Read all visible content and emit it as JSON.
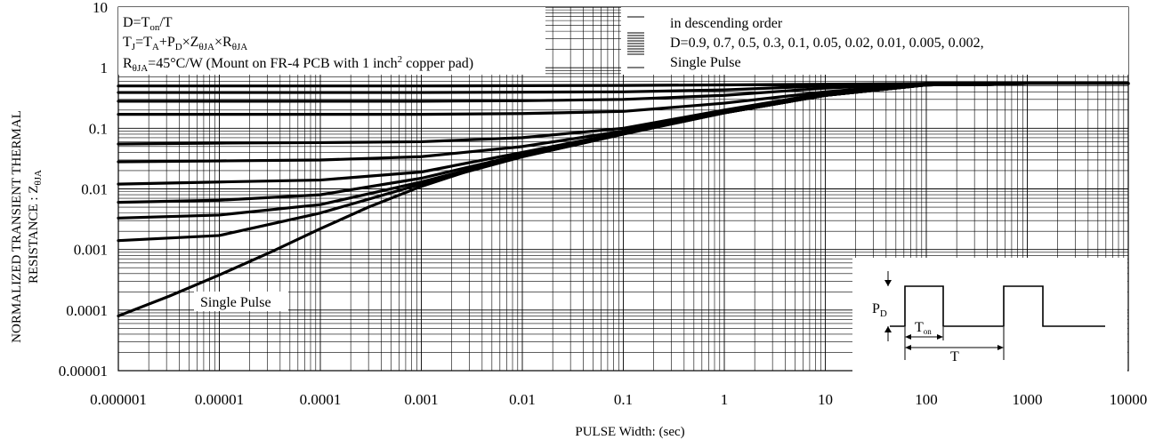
{
  "chart_data": {
    "type": "line",
    "x_scale": "log",
    "y_scale": "log",
    "xlim": [
      1e-06,
      10000
    ],
    "ylim": [
      1e-05,
      10
    ],
    "grid": true,
    "xlabel": "PULSE Width: (sec)",
    "ylabel_line1": "NORMALIZED TRANSIENT THERMAL",
    "ylabel_line2_text": "RESISTANCE : Z",
    "ylabel_line2_sub": "θJA",
    "x_tick_labels": [
      "0.000001",
      "0.00001",
      "0.0001",
      "0.001",
      "0.01",
      "0.1",
      "1",
      "10",
      "100",
      "1000",
      "10000"
    ],
    "x_ticks": [
      1e-06,
      1e-05,
      0.0001,
      0.001,
      0.01,
      0.1,
      1,
      10,
      100,
      1000,
      10000
    ],
    "y_tick_labels": [
      "10",
      "1",
      "0.1",
      "0.01",
      "0.001",
      "0.0001",
      "0.00001"
    ],
    "y_ticks": [
      10,
      1,
      0.1,
      0.01,
      0.001,
      0.0001,
      1e-05
    ],
    "annotation_lines": [
      {
        "parts": [
          {
            "t": "D=T"
          },
          {
            "t": "on",
            "sub": true
          },
          {
            "t": "/T"
          }
        ]
      },
      {
        "parts": [
          {
            "t": "T"
          },
          {
            "t": "J",
            "sub": true
          },
          {
            "t": "=T"
          },
          {
            "t": "A",
            "sub": true
          },
          {
            "t": "+P"
          },
          {
            "t": "D",
            "sub": true
          },
          {
            "t": "×Z"
          },
          {
            "t": "θJA",
            "sub": true
          },
          {
            "t": "×R"
          },
          {
            "t": "θJA",
            "sub": true
          }
        ]
      },
      {
        "parts": [
          {
            "t": "R"
          },
          {
            "t": "θJA",
            "sub": true
          },
          {
            "t": "=45°C/W (Mount on FR-4 PCB with 1 inch"
          },
          {
            "t": "2",
            "sup": true
          },
          {
            "t": " copper pad)"
          }
        ]
      }
    ],
    "legend": {
      "line1": "in descending order",
      "line2": "D=0.9, 0.7,  0.5, 0.3, 0.1, 0.05, 0.02, 0.01, 0.005, 0.002,",
      "line3": "Single Pulse"
    },
    "single_pulse_label": "Single Pulse",
    "inset": {
      "pd_label": "P",
      "pd_sub": "D",
      "ton_label": "T",
      "ton_sub": "on",
      "t_label": "T"
    },
    "steady_state_value": 0.55,
    "series": [
      {
        "duty": 0.9,
        "x": [
          1e-06,
          1e-05,
          0.0001,
          0.001,
          0.01,
          0.1,
          1,
          10,
          100,
          1000,
          10000
        ],
        "y": [
          0.5,
          0.5,
          0.5,
          0.5,
          0.505,
          0.51,
          0.52,
          0.535,
          0.55,
          0.55,
          0.55
        ]
      },
      {
        "duty": 0.7,
        "x": [
          1e-06,
          1e-05,
          0.0001,
          0.001,
          0.01,
          0.1,
          1,
          10,
          100,
          1000,
          10000
        ],
        "y": [
          0.39,
          0.39,
          0.39,
          0.39,
          0.395,
          0.4,
          0.43,
          0.5,
          0.55,
          0.55,
          0.55
        ]
      },
      {
        "duty": 0.5,
        "x": [
          1e-06,
          1e-05,
          0.0001,
          0.001,
          0.01,
          0.1,
          1,
          10,
          100,
          1000,
          10000
        ],
        "y": [
          0.28,
          0.28,
          0.28,
          0.28,
          0.285,
          0.3,
          0.35,
          0.46,
          0.55,
          0.55,
          0.55
        ]
      },
      {
        "duty": 0.3,
        "x": [
          1e-06,
          1e-05,
          0.0001,
          0.001,
          0.01,
          0.1,
          1,
          10,
          100,
          1000,
          10000
        ],
        "y": [
          0.17,
          0.17,
          0.17,
          0.17,
          0.175,
          0.19,
          0.26,
          0.4,
          0.55,
          0.55,
          0.55
        ]
      },
      {
        "duty": 0.1,
        "x": [
          1e-06,
          1e-05,
          0.0001,
          0.001,
          0.01,
          0.1,
          1,
          10,
          100,
          1000,
          10000
        ],
        "y": [
          0.055,
          0.057,
          0.058,
          0.06,
          0.07,
          0.1,
          0.2,
          0.38,
          0.52,
          0.55,
          0.55
        ]
      },
      {
        "duty": 0.05,
        "x": [
          1e-06,
          1e-05,
          0.0001,
          0.001,
          0.01,
          0.1,
          1,
          10,
          100,
          1000,
          10000
        ],
        "y": [
          0.028,
          0.029,
          0.03,
          0.034,
          0.05,
          0.09,
          0.19,
          0.36,
          0.52,
          0.55,
          0.55
        ]
      },
      {
        "duty": 0.02,
        "x": [
          1e-06,
          1e-05,
          0.0001,
          0.001,
          0.01,
          0.1,
          1,
          10,
          100,
          1000,
          10000
        ],
        "y": [
          0.012,
          0.013,
          0.014,
          0.019,
          0.04,
          0.085,
          0.185,
          0.35,
          0.52,
          0.55,
          0.55
        ]
      },
      {
        "duty": 0.01,
        "x": [
          1e-06,
          1e-05,
          0.0001,
          0.001,
          0.01,
          0.1,
          1,
          10,
          100,
          1000,
          10000
        ],
        "y": [
          0.006,
          0.0065,
          0.008,
          0.015,
          0.037,
          0.083,
          0.18,
          0.35,
          0.52,
          0.55,
          0.55
        ]
      },
      {
        "duty": 0.005,
        "x": [
          1e-06,
          1e-05,
          0.0001,
          0.001,
          0.01,
          0.1,
          1,
          10,
          100,
          1000,
          10000
        ],
        "y": [
          0.0033,
          0.0037,
          0.0055,
          0.013,
          0.035,
          0.082,
          0.18,
          0.35,
          0.52,
          0.55,
          0.55
        ]
      },
      {
        "duty": 0.002,
        "x": [
          1e-06,
          1e-05,
          0.0001,
          0.001,
          0.01,
          0.1,
          1,
          10,
          100,
          1000,
          10000
        ],
        "y": [
          0.0014,
          0.0017,
          0.004,
          0.012,
          0.034,
          0.081,
          0.18,
          0.35,
          0.52,
          0.55,
          0.55
        ]
      },
      {
        "duty": "Single Pulse",
        "x": [
          1e-06,
          3.2e-06,
          1e-05,
          3.2e-05,
          0.0001,
          0.0003,
          0.001,
          0.003,
          0.01,
          0.1,
          1,
          10,
          100,
          1000,
          10000
        ],
        "y": [
          8e-05,
          0.00017,
          0.00038,
          0.0009,
          0.0022,
          0.005,
          0.011,
          0.02,
          0.034,
          0.08,
          0.18,
          0.35,
          0.52,
          0.55,
          0.55
        ]
      }
    ]
  }
}
